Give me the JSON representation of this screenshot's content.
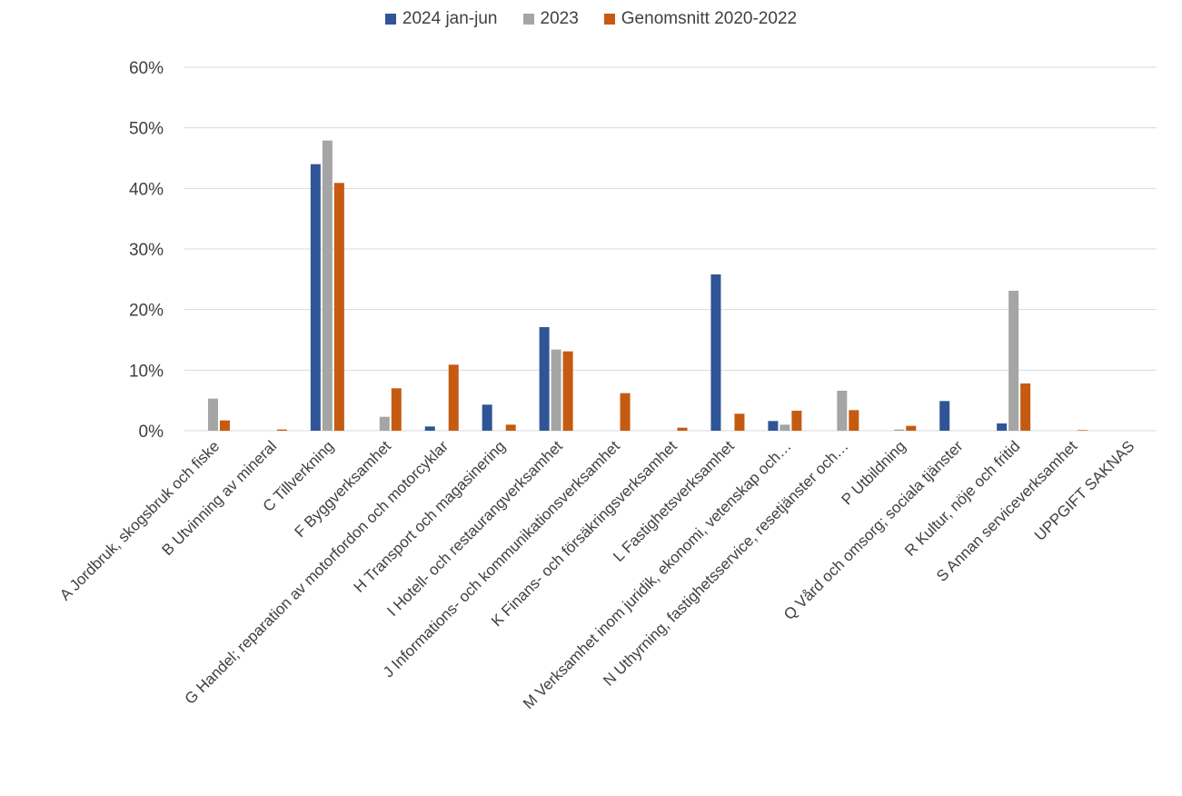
{
  "chart_data": {
    "type": "bar",
    "title": "",
    "xlabel": "",
    "ylabel": "",
    "ylim": [
      0,
      0.6
    ],
    "y_ticks": [
      "0%",
      "10%",
      "20%",
      "30%",
      "40%",
      "50%",
      "60%"
    ],
    "y_tick_values": [
      0,
      0.1,
      0.2,
      0.3,
      0.4,
      0.5,
      0.6
    ],
    "grid": true,
    "legend_position": "top-center",
    "categories": [
      "A Jordbruk, skogsbruk och fiske",
      "B Utvinning av mineral",
      "C Tillverkning",
      "F Byggverksamhet",
      "G Handel; reparation av motorfordon och motorcyklar",
      "H Transport och magasinering",
      "I Hotell- och restaurangverksamhet",
      "J Informations- och kommunikationsverksamhet",
      "K Finans- och försäkringsverksamhet",
      "L Fastighetsverksamhet",
      "M Verksamhet inom juridik, ekonomi, vetenskap och…",
      "N Uthyrning, fastighetsservice, resetjänster och…",
      "P Utbildning",
      "Q Vård och omsorg; sociala tjänster",
      "R Kultur, nöje och fritid",
      "S Annan serviceverksamhet",
      "UPPGIFT SAKNAS"
    ],
    "series": [
      {
        "name": "2024 jan-jun",
        "color": "#2f5597",
        "values": [
          0,
          0,
          0.44,
          0,
          0.007,
          0.043,
          0.171,
          0,
          0,
          0.258,
          0.016,
          0,
          0,
          0.049,
          0.012,
          0,
          0
        ]
      },
      {
        "name": "2023",
        "color": "#a5a5a5",
        "values": [
          0.053,
          0,
          0.479,
          0.023,
          0,
          0,
          0.134,
          0,
          0,
          0,
          0.01,
          0.066,
          0.002,
          0,
          0.231,
          0,
          0
        ]
      },
      {
        "name": "Genomsnitt 2020-2022",
        "color": "#c55a11",
        "values": [
          0.017,
          0.002,
          0.409,
          0.07,
          0.109,
          0.01,
          0.131,
          0.062,
          0.005,
          0.028,
          0.033,
          0.034,
          0.008,
          0,
          0.078,
          0.001,
          0
        ]
      }
    ]
  }
}
